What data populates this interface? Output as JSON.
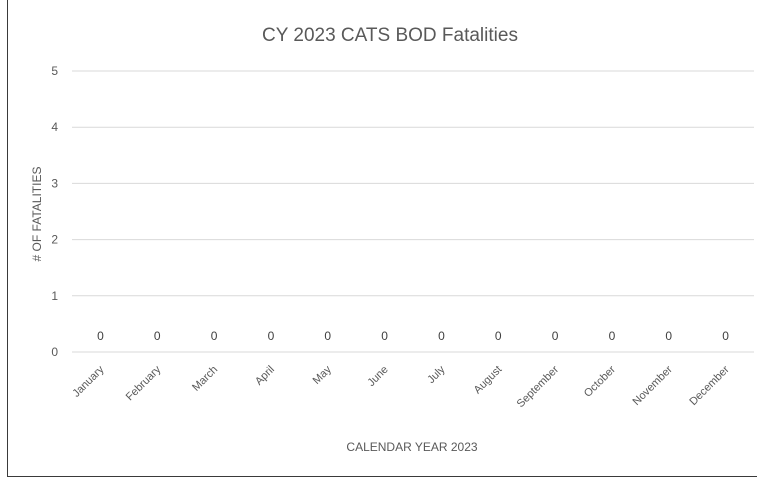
{
  "chart_data": {
    "type": "bar",
    "title": "CY 2023 CATS BOD Fatalities",
    "xlabel": "CALENDAR YEAR 2023",
    "ylabel": "# OF FATALITIES",
    "categories": [
      "January",
      "February",
      "March",
      "April",
      "May",
      "June",
      "July",
      "August",
      "September",
      "October",
      "November",
      "December"
    ],
    "values": [
      0,
      0,
      0,
      0,
      0,
      0,
      0,
      0,
      0,
      0,
      0,
      0
    ],
    "ylim": [
      0,
      5
    ],
    "yticks": [
      0,
      1,
      2,
      3,
      4,
      5
    ],
    "grid": true,
    "legend": "none",
    "gridColor": "#d9d9d9",
    "textColor": "#595959"
  }
}
